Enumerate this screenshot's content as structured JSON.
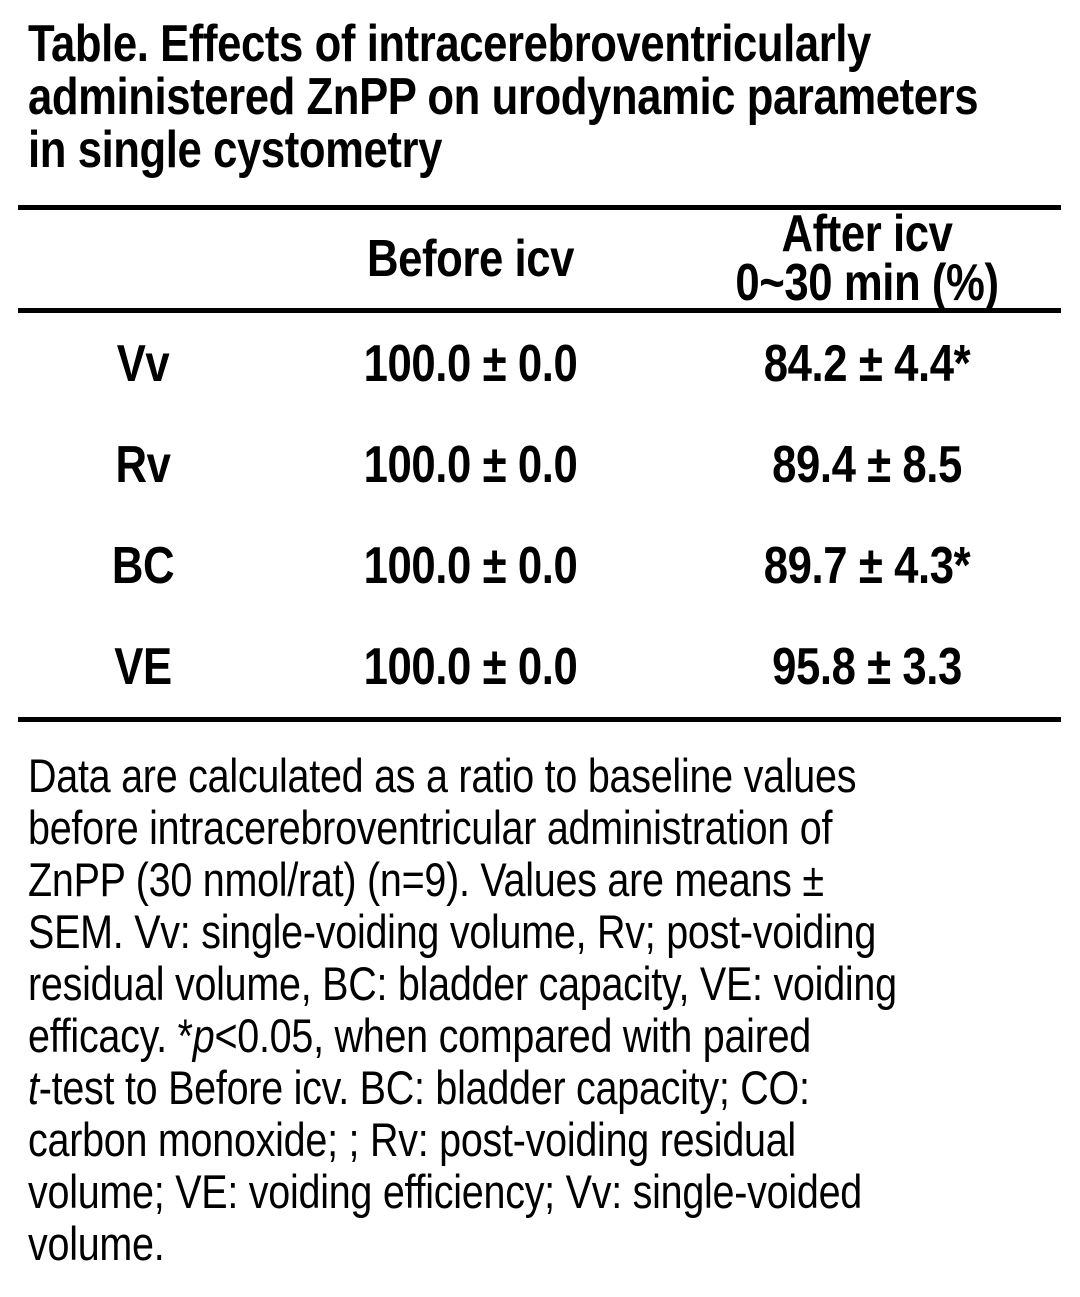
{
  "document": {
    "title_lines": [
      "Table. Effects of intracerebroventricularly",
      "administered ZnPP on urodynamic parameters",
      "in single cystometry"
    ],
    "table": {
      "header": {
        "before": "Before icv",
        "after_line1": "After icv",
        "after_line2": "0~30 min (%)"
      },
      "rows": [
        {
          "label": "Vv",
          "before": "100.0 ± 0.0",
          "after": "84.2 ± 4.4*"
        },
        {
          "label": "Rv",
          "before": "100.0 ± 0.0",
          "after": "89.4 ± 8.5"
        },
        {
          "label": "BC",
          "before": "100.0 ± 0.0",
          "after": "89.7 ± 4.3*"
        },
        {
          "label": "VE",
          "before": "100.0 ± 0.0",
          "after": "95.8 ± 3.3"
        }
      ]
    },
    "footnote_lines": [
      [
        {
          "t": "Data are calculated as a ratio to baseline values"
        }
      ],
      [
        {
          "t": "before intracerebroventricular administration of"
        }
      ],
      [
        {
          "t": "ZnPP (30 nmol/rat) (n=9). Values are means ±"
        }
      ],
      [
        {
          "t": "SEM. Vv: single-voiding volume, Rv; post-voiding"
        }
      ],
      [
        {
          "t": "residual volume, BC: bladder capacity, VE: voiding"
        }
      ],
      [
        {
          "t": "efficacy. *"
        },
        {
          "t": "p",
          "i": true
        },
        {
          "t": "<0.05, when compared with paired"
        }
      ],
      [
        {
          "t": "t",
          "i": true
        },
        {
          "t": "-test to Before icv. BC: bladder capacity; CO:"
        }
      ],
      [
        {
          "t": "carbon monoxide; ; Rv: post-voiding residual"
        }
      ],
      [
        {
          "t": "volume; VE: voiding efficiency; Vv: single-voided"
        }
      ],
      [
        {
          "t": "volume."
        }
      ]
    ]
  },
  "colors": {
    "text": "#000000",
    "background": "#ffffff",
    "rule": "#000000"
  }
}
